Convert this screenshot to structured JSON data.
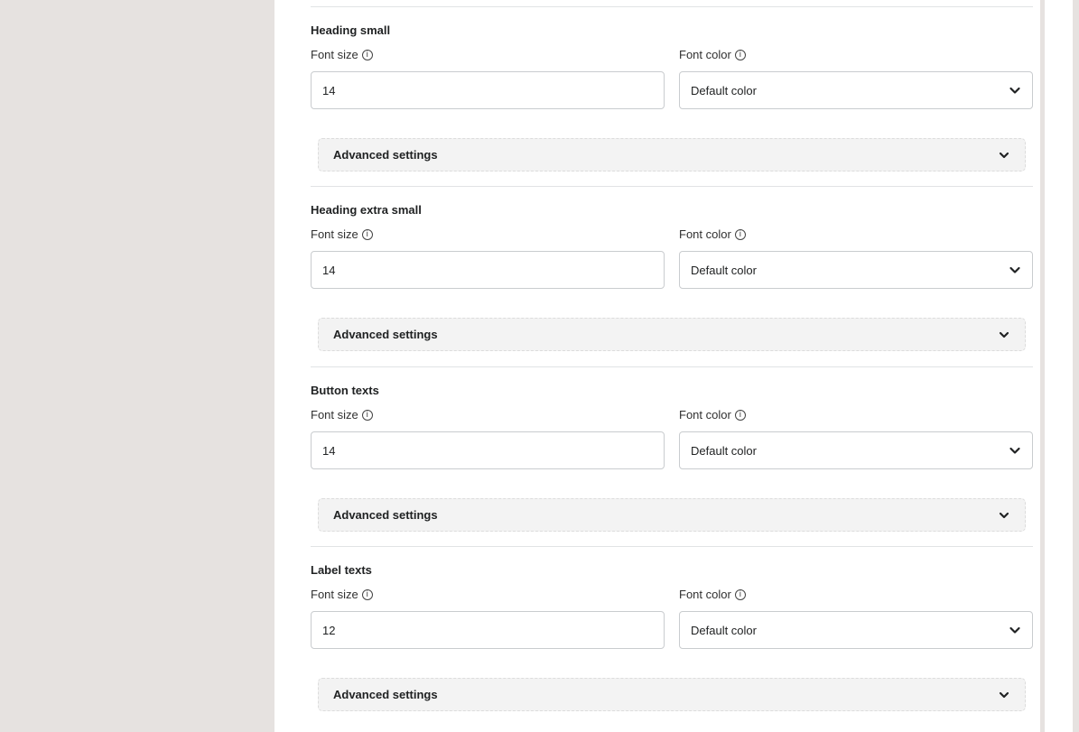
{
  "sections": [
    {
      "title": "Heading small",
      "font_size_label": "Font size",
      "font_size": "14",
      "font_color_label": "Font color",
      "font_color": "Default color",
      "advanced": "Advanced settings"
    },
    {
      "title": "Heading extra small",
      "font_size_label": "Font size",
      "font_size": "14",
      "font_color_label": "Font color",
      "font_color": "Default color",
      "advanced": "Advanced settings"
    },
    {
      "title": "Button texts",
      "font_size_label": "Font size",
      "font_size": "14",
      "font_color_label": "Font color",
      "font_color": "Default color",
      "advanced": "Advanced settings"
    },
    {
      "title": "Label texts",
      "font_size_label": "Font size",
      "font_size": "12",
      "font_color_label": "Font color",
      "font_color": "Default color",
      "advanced": "Advanced settings"
    }
  ],
  "icons": {
    "info": "info-circle-icon",
    "chevron": "chevron-down-icon"
  }
}
